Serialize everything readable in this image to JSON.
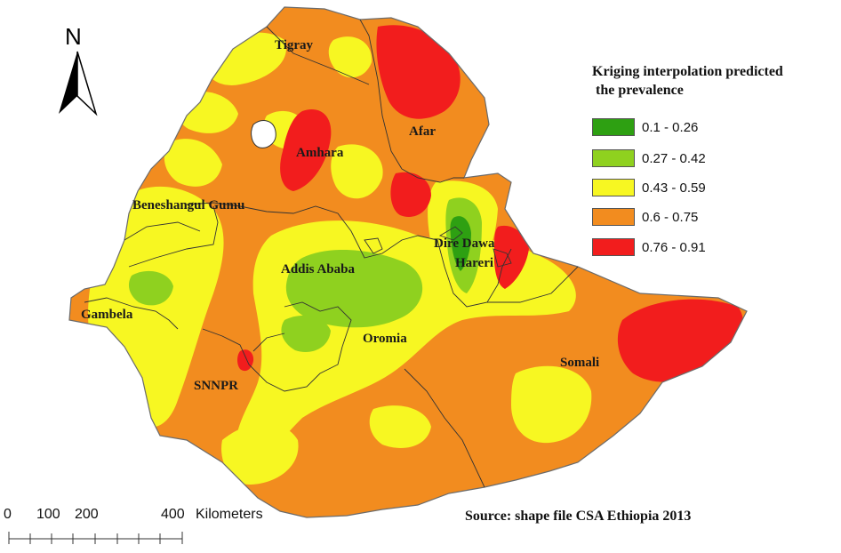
{
  "north_arrow": {
    "letter": "N"
  },
  "legend": {
    "title_line1": "Kriging interpolation predicted",
    "title_line2": "the prevalence",
    "items": [
      {
        "range": "0.1 - 0.26",
        "color": "#2ea012"
      },
      {
        "range": "0.27 - 0.42",
        "color": "#8fd11f"
      },
      {
        "range": "0.43 - 0.59",
        "color": "#f7f722"
      },
      {
        "range": "0.6 - 0.75",
        "color": "#f28c1f"
      },
      {
        "range": "0.76 - 0.91",
        "color": "#f21d1d"
      }
    ]
  },
  "regions": {
    "tigray": "Tigray",
    "afar": "Afar",
    "amhara": "Amhara",
    "beneshangul": "Beneshangul Gumu",
    "dire_dawa": "Dire Dawa",
    "hareri": "Hareri",
    "addis_ababa": "Addis Ababa",
    "gambela": "Gambela",
    "oromia": "Oromia",
    "somali": "Somali",
    "snnpr": "SNNPR"
  },
  "scale_bar": {
    "label_0": "0",
    "label_100": "100",
    "label_200": "200",
    "label_400": "400",
    "unit": "Kilometers"
  },
  "source": "Source: shape file  CSA Ethiopia 2013"
}
